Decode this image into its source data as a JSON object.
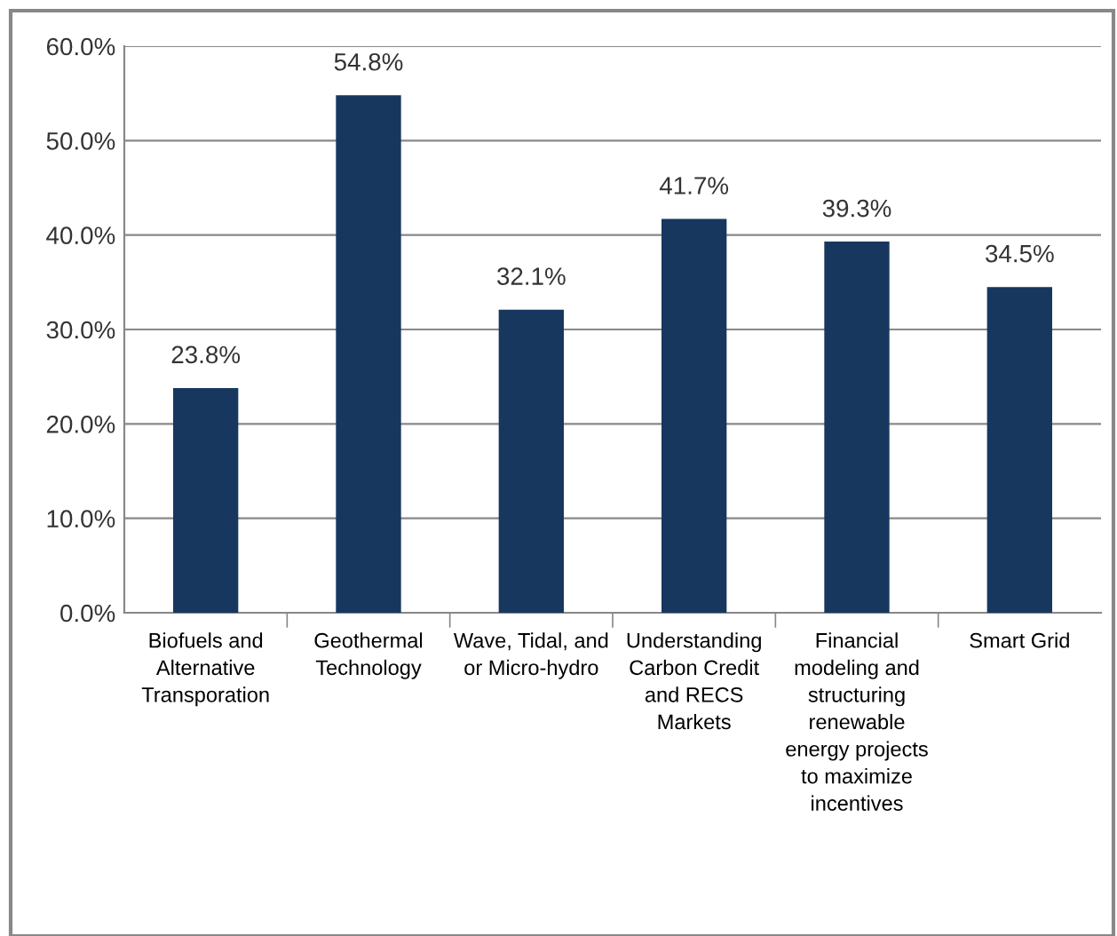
{
  "chart_data": {
    "type": "bar",
    "categories": [
      "Biofuels and\nAlternative\nTransporation",
      "Geothermal\nTechnology",
      "Wave, Tidal, and\nor Micro-hydro",
      "Understanding\nCarbon Credit\nand RECS\nMarkets",
      "Financial\nmodeling and\nstructuring\nrenewable\nenergy projects\nto maximize\nincentives",
      "Smart Grid"
    ],
    "values": [
      23.8,
      54.8,
      32.1,
      41.7,
      39.3,
      34.5
    ],
    "value_labels": [
      "23.8%",
      "54.8%",
      "32.1%",
      "41.7%",
      "39.3%",
      "34.5%"
    ],
    "color": "#17375e",
    "ylim": [
      0,
      60
    ],
    "yticks": [
      {
        "value": 0,
        "label": "0.0%"
      },
      {
        "value": 10,
        "label": "10.0%"
      },
      {
        "value": 20,
        "label": "20.0%"
      },
      {
        "value": 30,
        "label": "30.0%"
      },
      {
        "value": 40,
        "label": "40.0%"
      },
      {
        "value": 50,
        "label": "50.0%"
      },
      {
        "value": 60,
        "label": "60.0%"
      }
    ],
    "grid": "y"
  }
}
